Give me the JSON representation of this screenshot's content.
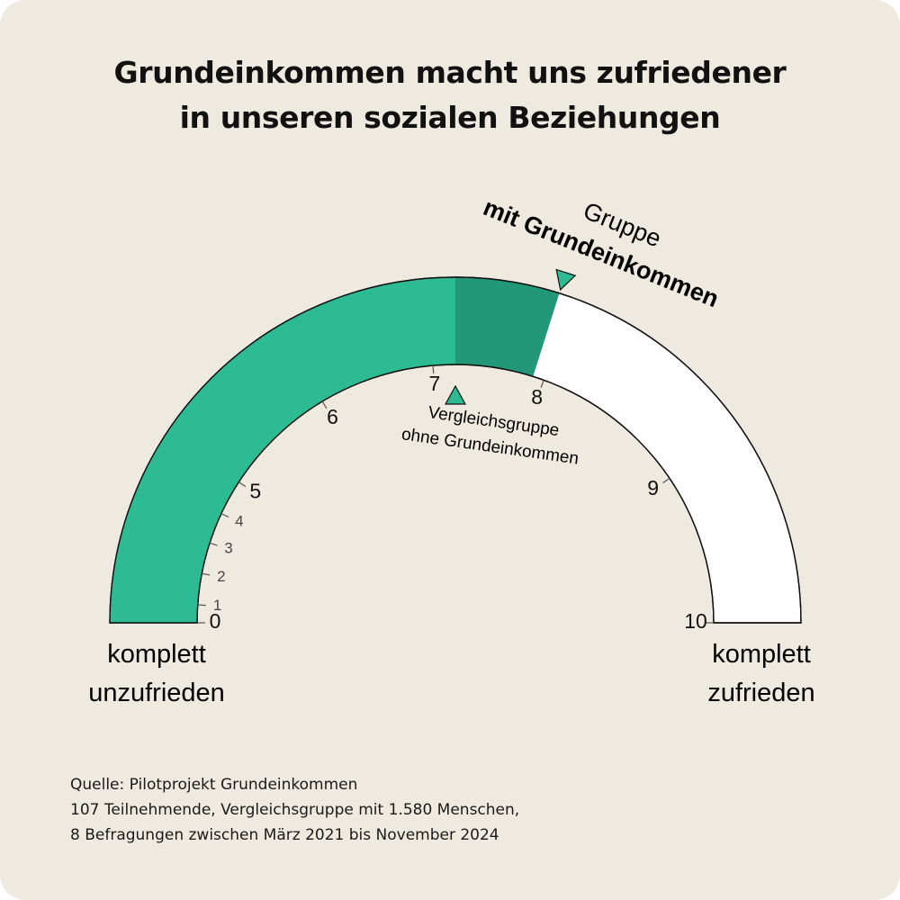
{
  "header": {
    "title_lines": [
      "Grundeinkommen macht uns zufriedener",
      "in unseren sozialen Beziehungen"
    ]
  },
  "chart_data": {
    "type": "gauge",
    "scale": [
      0,
      10
    ],
    "ticks": [
      "0",
      "1",
      "2",
      "3",
      "4",
      "5",
      "6",
      "7",
      "8",
      "9",
      "10"
    ],
    "series": [
      {
        "name": "Vergleichsgruppe ohne Grundeinkommen",
        "value": 7.2
      },
      {
        "name": "Gruppe mit Grundeinkommen",
        "value": 7.9
      }
    ],
    "labels": {
      "min_line1": "komplett",
      "min_line2": "unzufrieden",
      "max_line1": "komplett",
      "max_line2": "zufrieden",
      "group_line1": "Gruppe",
      "group_line2": "mit Grundeinkommen",
      "comparison_line1": "Vergleichsgruppe",
      "comparison_line2": "ohne Grundeinkommen"
    },
    "colors": {
      "base": "#2dbb93",
      "gain": "#229878",
      "marker": "#2dbb93",
      "empty": "#ffffff"
    }
  },
  "source": {
    "lines": [
      "Quelle: Pilotprojekt Grundeinkommen",
      "107 Teilnehmende, Vergleichsgruppe mit 1.580 Menschen,",
      "8 Befragungen zwischen März 2021 bis November 2024"
    ]
  }
}
